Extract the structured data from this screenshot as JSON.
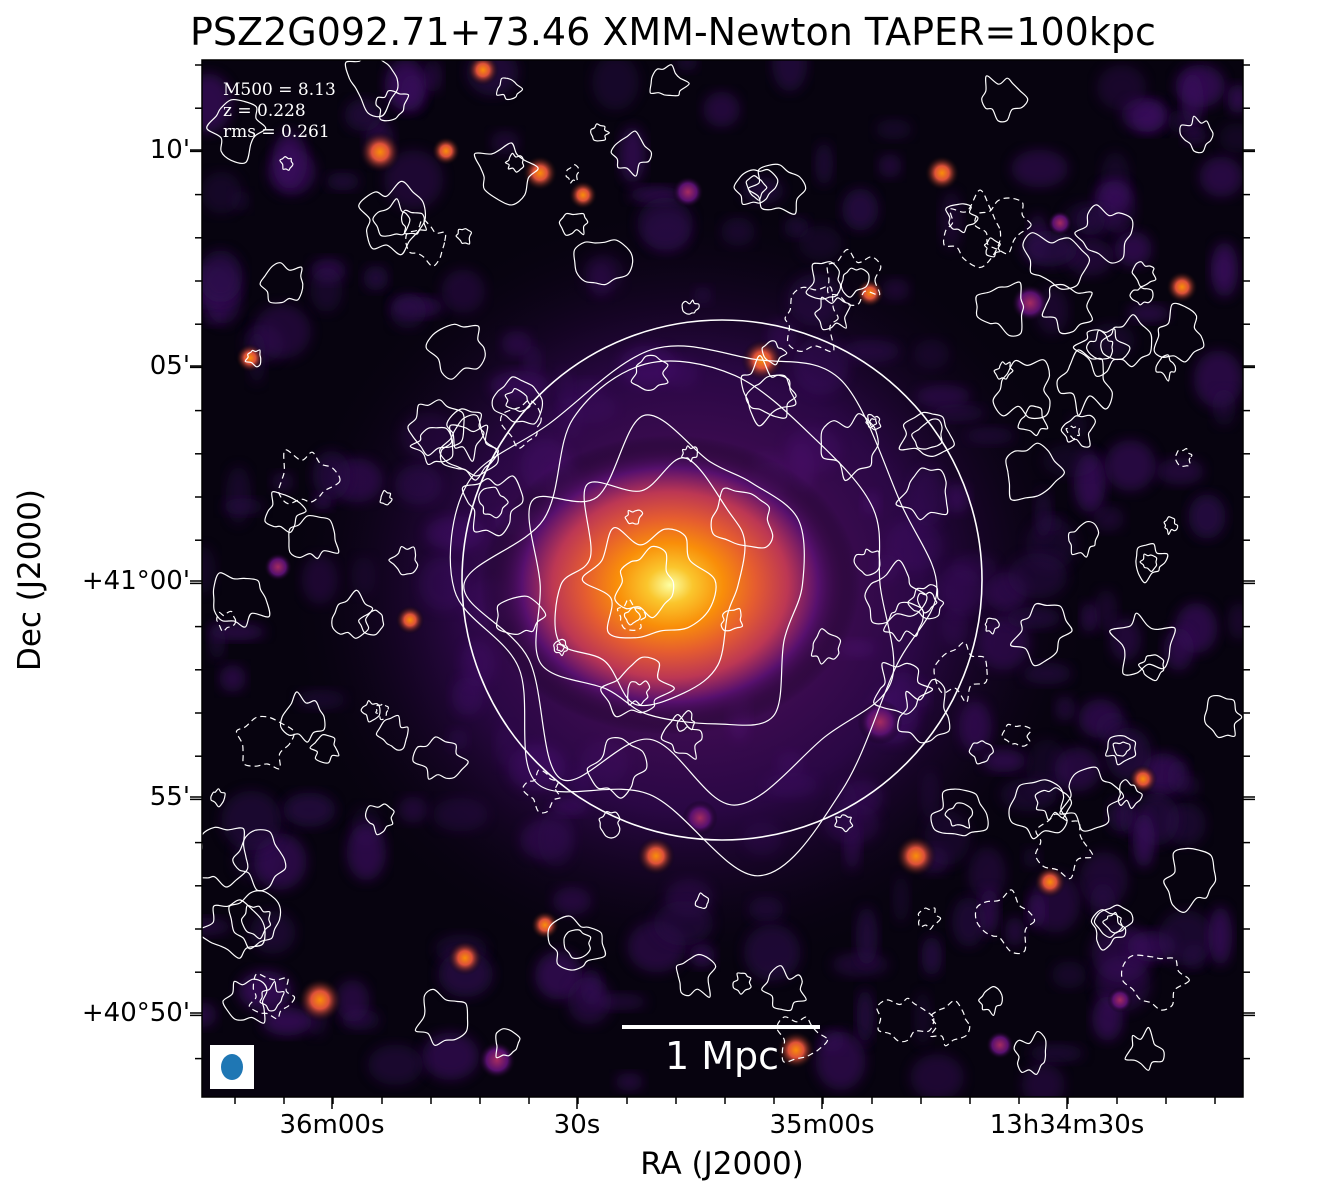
{
  "title": "PSZ2G092.71+73.46 XMM-Newton TAPER=100kpc",
  "info": {
    "m500": "M500 = 8.13",
    "z": "z = 0.228",
    "rms": "rms = 0.261"
  },
  "scale_bar": "1 Mpc",
  "axes": {
    "xlabel": "RA (J2000)",
    "ylabel": "Dec (J2000)",
    "xticks": [
      "36m00s",
      "30s",
      "35m00s",
      "13h34m30s"
    ],
    "yticks": [
      "10'",
      "05'",
      "+41°00'",
      "55'",
      "+40°50'"
    ]
  },
  "colors": {
    "colormap": "inferno",
    "contour": "#ffffff",
    "beam": "#1f77b4",
    "background": "#000000"
  }
}
